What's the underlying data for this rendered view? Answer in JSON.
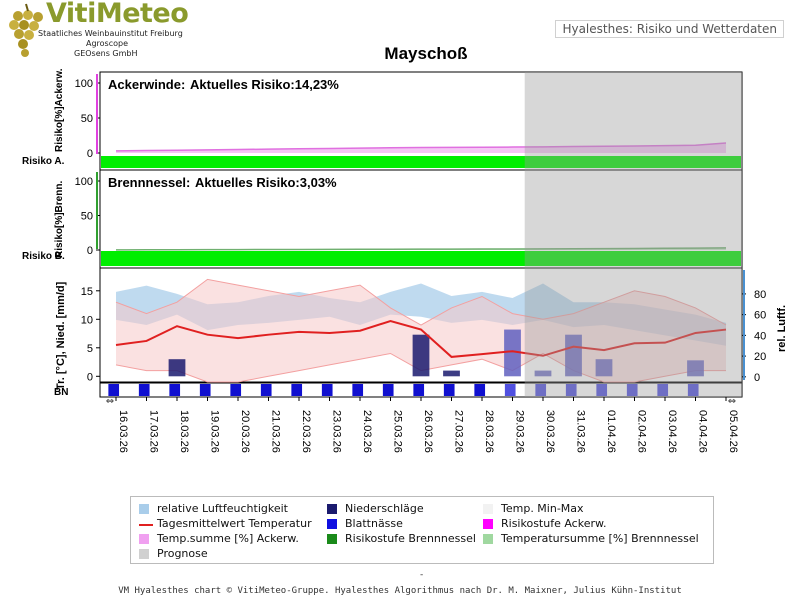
{
  "header": {
    "logo_title": "VitiMeteo",
    "logo_lines": [
      "Staatliches Weinbauinstitut Freiburg",
      "Agroscope",
      "GEOsens GmbH"
    ],
    "tab_label": "Hyalesthes: Risiko und Wetterdaten"
  },
  "footer": {
    "dash": "-",
    "credit": "VM Hyalesthes chart © VitiMeteo-Gruppe. Hyalesthes Algorithmus nach Dr. M. Maixner, Julius Kühn-Institut"
  },
  "legend": [
    {
      "label": "relative Luftfeuchtigkeit",
      "color": "#a9cdea"
    },
    {
      "label": "Niederschläge",
      "color": "#1a1a6e"
    },
    {
      "label": "Temp. Min-Max",
      "color": "#f2f2f2"
    },
    {
      "label": "Tagesmittelwert Temperatur",
      "color": "#e02020"
    },
    {
      "label": "Blattnässe",
      "color": "#1010e0"
    },
    {
      "label": "Risikostufe Ackerw.",
      "color": "#ff00ff"
    },
    {
      "label": "Temp.summe [%] Ackerw.",
      "color": "#f0a0f0"
    },
    {
      "label": "Risikostufe Brennnessel",
      "color": "#1a8a1a"
    },
    {
      "label": "Temperatursumme [%] Brennnessel",
      "color": "#a0d8a0"
    },
    {
      "label": "Prognose",
      "color": "#d0d0d0"
    }
  ],
  "chart_data": {
    "title": "Mayschoß",
    "dates": [
      "16.03.26",
      "17.03.26",
      "18.03.26",
      "19.03.26",
      "20.03.26",
      "21.03.26",
      "22.03.26",
      "23.03.26",
      "24.03.26",
      "25.03.26",
      "26.03.26",
      "27.03.26",
      "28.03.26",
      "29.03.26",
      "30.03.26",
      "31.03.26",
      "01.04.26",
      "02.04.26",
      "03.04.26",
      "04.04.26",
      "05.04.26"
    ],
    "forecast_start": "29.03.26",
    "panels": [
      {
        "type": "area",
        "name": "ackerwinde",
        "title": "Ackerwinde:",
        "risk_text": "Aktuelles Risiko:14,23%",
        "ylabel": "Risiko[%]Ackerw.",
        "risk_row_label": "Risiko A.",
        "ylim": [
          0,
          110
        ],
        "yticks": [
          "100",
          "50",
          "0"
        ],
        "risk_level_color": "#00ee00",
        "temp_sum_percent": [
          3,
          3.5,
          4,
          4.5,
          5,
          5.5,
          6,
          6.5,
          7,
          7.5,
          7.8,
          8,
          8.2,
          8.5,
          8.8,
          9.2,
          9.6,
          10,
          10.5,
          11,
          14.23
        ]
      },
      {
        "type": "area",
        "name": "brennnessel",
        "title": "Brennnessel:",
        "risk_text": "Aktuelles Risiko:3,03%",
        "ylabel": "Risiko[%]Brenn.",
        "risk_row_label": "Risiko B.",
        "ylim": [
          0,
          110
        ],
        "yticks": [
          "100",
          "50",
          "0"
        ],
        "risk_level_color": "#00ee00",
        "temp_sum_percent": [
          0.2,
          0.3,
          0.4,
          0.5,
          0.6,
          0.7,
          0.8,
          0.9,
          1.0,
          1.1,
          1.2,
          1.3,
          1.4,
          1.5,
          1.6,
          1.8,
          2.0,
          2.2,
          2.5,
          2.8,
          3.03
        ]
      },
      {
        "type": "line",
        "name": "weather",
        "ylabel_left": "Tr. [°C], Nied. [mm/d]",
        "ylabel_right": "rel. Luftf.",
        "ylim_left": [
          -1,
          19
        ],
        "yticks_left": [
          "15",
          "10",
          "5",
          "0"
        ],
        "ylim_right": [
          -5,
          105
        ],
        "yticks_right": [
          "80",
          "60",
          "40",
          "20",
          "0"
        ],
        "humidity": [
          82,
          88,
          80,
          70,
          72,
          78,
          82,
          76,
          72,
          82,
          90,
          78,
          82,
          76,
          90,
          72,
          72,
          70,
          65,
          60,
          52
        ],
        "humidity_low": [
          55,
          50,
          60,
          45,
          50,
          52,
          55,
          58,
          50,
          60,
          58,
          52,
          55,
          50,
          55,
          48,
          50,
          45,
          40,
          35,
          30
        ],
        "temp_max": [
          13,
          11,
          13,
          17,
          16,
          15,
          14,
          15,
          16,
          12,
          9,
          12,
          14,
          11,
          10,
          11,
          13,
          15,
          14,
          12,
          9
        ],
        "temp_min": [
          2,
          1,
          1,
          -1,
          -1,
          0,
          1,
          2,
          3,
          4,
          1,
          2,
          3,
          1,
          4,
          1,
          -1,
          -1,
          0,
          1,
          1
        ],
        "temp_mean": [
          5.5,
          6.2,
          8.8,
          7.3,
          6.7,
          7.3,
          7.8,
          7.6,
          8.0,
          9.7,
          8.2,
          3.4,
          3.9,
          4.4,
          3.6,
          5.2,
          4.6,
          5.8,
          5.9,
          7.6,
          8.2
        ],
        "precipitation": [
          0,
          0,
          3,
          0,
          0,
          0,
          0,
          0,
          0,
          0,
          7.3,
          1,
          0,
          8.2,
          1,
          7.3,
          3,
          0,
          0,
          2.8,
          0
        ],
        "leaf_wetness_label": "BN",
        "leaf_wetness_days": [
          0,
          1,
          2,
          3,
          4,
          5,
          6,
          7,
          8,
          9,
          10,
          11,
          12,
          13,
          14,
          15,
          16,
          17,
          18,
          19
        ]
      }
    ]
  }
}
